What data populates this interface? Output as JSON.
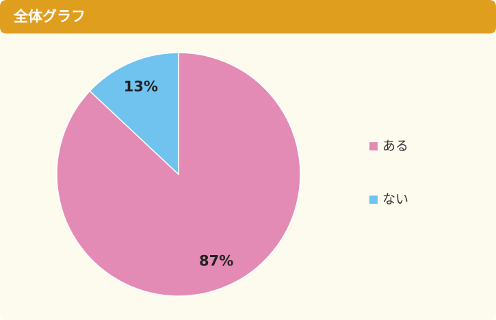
{
  "chart_data": {
    "type": "pie",
    "title": "全体グラフ",
    "categories": [
      "ある",
      "ない"
    ],
    "values": [
      87,
      13
    ],
    "value_labels": [
      "87%",
      "13%"
    ],
    "colors": [
      "#e38bb5",
      "#6fc3ee"
    ],
    "legend": "right"
  }
}
